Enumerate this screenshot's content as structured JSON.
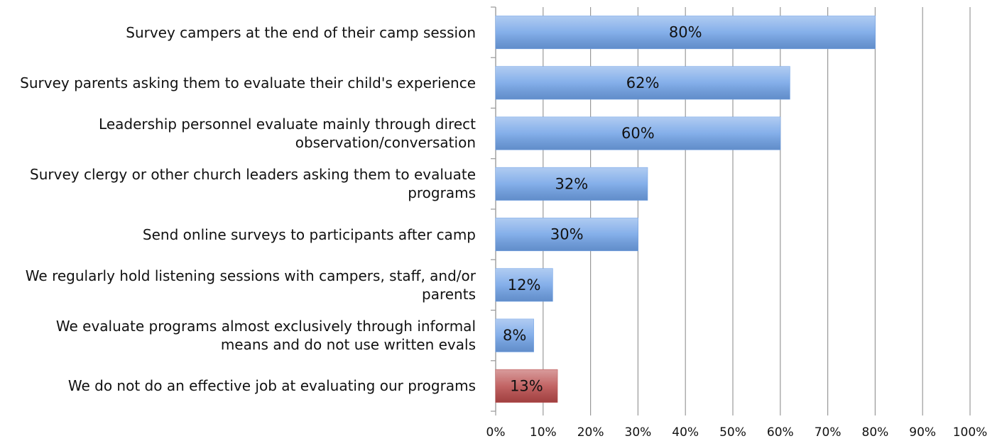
{
  "chart_data": {
    "type": "barh",
    "categories": [
      "Survey campers at the end of their camp session",
      "Survey parents asking them to evaluate their child's experience",
      "Leadership personnel evaluate mainly through direct observation/conversation",
      "Survey clergy or other church leaders asking them to evaluate programs",
      "Send online surveys to participants after camp",
      "We regularly hold listening sessions with campers, staff, and/or parents",
      "We evaluate programs almost exclusively through informal means and do not use written evals",
      "We do not do an effective job at evaluating our programs"
    ],
    "values": [
      80,
      62,
      60,
      32,
      30,
      12,
      8,
      13
    ],
    "value_labels": [
      "80%",
      "62%",
      "60%",
      "32%",
      "30%",
      "12%",
      "8%",
      "13%"
    ],
    "colors": [
      "#6fa1e6",
      "#6fa1e6",
      "#6fa1e6",
      "#6fa1e6",
      "#6fa1e6",
      "#6fa1e6",
      "#6fa1e6",
      "#b84a4a"
    ],
    "xlim": [
      0,
      100
    ],
    "xticks": [
      {
        "value": 0,
        "label": "0%"
      },
      {
        "value": 10,
        "label": "10%"
      },
      {
        "value": 20,
        "label": "20%"
      },
      {
        "value": 30,
        "label": "30%"
      },
      {
        "value": 40,
        "label": "40%"
      },
      {
        "value": 50,
        "label": "50%"
      },
      {
        "value": 60,
        "label": "60%"
      },
      {
        "value": 70,
        "label": "70%"
      },
      {
        "value": 80,
        "label": "80%"
      },
      {
        "value": 90,
        "label": "90%"
      },
      {
        "value": 100,
        "label": "100%"
      }
    ],
    "grid": true
  }
}
